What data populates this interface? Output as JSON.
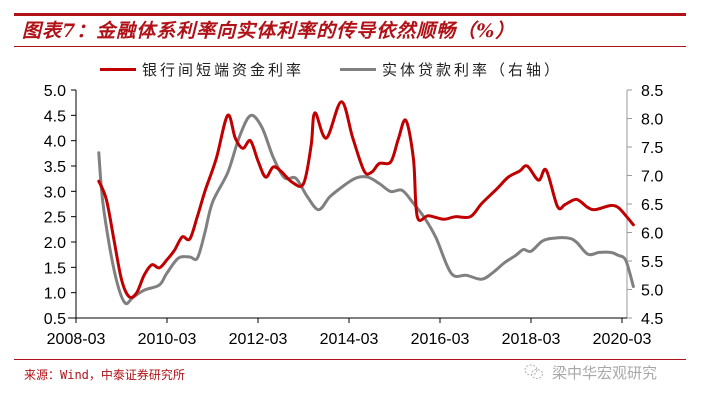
{
  "header": {
    "title": "图表7：金融体系利率向实体利率的传导依然顺畅（%）"
  },
  "legend": {
    "items": [
      {
        "label": "银行间短端资金利率",
        "color": "#c00000"
      },
      {
        "label": "实体贷款利率（右轴）",
        "color": "#808080"
      }
    ]
  },
  "footer": {
    "source": "来源：Wind，中泰证券研究所",
    "watermark": "梁中华宏观研究"
  },
  "chart_data": {
    "type": "line",
    "title": "图表7：金融体系利率向实体利率的传导依然顺畅（%）",
    "xlabel": "",
    "ylabel": "",
    "y2label": "右轴",
    "x_ticks": [
      "2008-03",
      "2010-03",
      "2012-03",
      "2014-03",
      "2016-03",
      "2018-03",
      "2020-03"
    ],
    "left_axis": {
      "range": [
        0.5,
        5.0
      ],
      "ticks": [
        "5.0",
        "4.5",
        "4.0",
        "3.5",
        "3.0",
        "2.5",
        "2.0",
        "1.5",
        "1.0",
        "0.5"
      ]
    },
    "right_axis": {
      "range": [
        4.5,
        8.5
      ],
      "ticks": [
        "8.5",
        "8.0",
        "7.5",
        "7.0",
        "6.5",
        "6.0",
        "5.5",
        "5.0",
        "4.5"
      ]
    },
    "grid": false,
    "legend_position": "top",
    "series": [
      {
        "name": "银行间短端资金利率",
        "axis": "left",
        "color": "#c00000",
        "points": [
          [
            "2008-09",
            3.2
          ],
          [
            "2008-11",
            2.84
          ],
          [
            "2009-01",
            2.05
          ],
          [
            "2009-03",
            1.26
          ],
          [
            "2009-05",
            0.92
          ],
          [
            "2009-07",
            1.0
          ],
          [
            "2009-09",
            1.35
          ],
          [
            "2009-11",
            1.55
          ],
          [
            "2010-01",
            1.49
          ],
          [
            "2010-03",
            1.65
          ],
          [
            "2010-05",
            1.84
          ],
          [
            "2010-07",
            2.1
          ],
          [
            "2010-09",
            2.06
          ],
          [
            "2010-11",
            2.5
          ],
          [
            "2011-01",
            3.0
          ],
          [
            "2011-04",
            3.65
          ],
          [
            "2011-07",
            4.5
          ],
          [
            "2011-09",
            4.05
          ],
          [
            "2011-11",
            3.85
          ],
          [
            "2012-01",
            4.0
          ],
          [
            "2012-03",
            3.6
          ],
          [
            "2012-05",
            3.28
          ],
          [
            "2012-07",
            3.48
          ],
          [
            "2012-09",
            3.4
          ],
          [
            "2012-12",
            3.18
          ],
          [
            "2013-03",
            3.15
          ],
          [
            "2013-05",
            3.9
          ],
          [
            "2013-06",
            4.55
          ],
          [
            "2013-09",
            4.05
          ],
          [
            "2014-01",
            4.77
          ],
          [
            "2014-04",
            4.05
          ],
          [
            "2014-07",
            3.4
          ],
          [
            "2014-09",
            3.38
          ],
          [
            "2014-11",
            3.55
          ],
          [
            "2015-02",
            3.58
          ],
          [
            "2015-04",
            4.03
          ],
          [
            "2015-06",
            4.4
          ],
          [
            "2015-08",
            3.63
          ],
          [
            "2015-09",
            2.5
          ],
          [
            "2015-12",
            2.52
          ],
          [
            "2016-04",
            2.45
          ],
          [
            "2016-07",
            2.5
          ],
          [
            "2016-11",
            2.5
          ],
          [
            "2017-02",
            2.76
          ],
          [
            "2017-06",
            3.05
          ],
          [
            "2017-09",
            3.28
          ],
          [
            "2017-12",
            3.4
          ],
          [
            "2018-02",
            3.5
          ],
          [
            "2018-05",
            3.22
          ],
          [
            "2018-07",
            3.42
          ],
          [
            "2018-10",
            2.7
          ],
          [
            "2018-12",
            2.74
          ],
          [
            "2019-03",
            2.84
          ],
          [
            "2019-06",
            2.68
          ],
          [
            "2019-08",
            2.64
          ],
          [
            "2019-12",
            2.72
          ],
          [
            "2020-02",
            2.68
          ],
          [
            "2020-04",
            2.52
          ],
          [
            "2020-06",
            2.34
          ]
        ]
      },
      {
        "name": "实体贷款利率（右轴）",
        "axis": "right",
        "color": "#808080",
        "points": [
          [
            "2008-09",
            7.4
          ],
          [
            "2008-10",
            6.58
          ],
          [
            "2008-12",
            5.7
          ],
          [
            "2009-02",
            5.08
          ],
          [
            "2009-04",
            4.76
          ],
          [
            "2009-06",
            4.86
          ],
          [
            "2009-09",
            4.99
          ],
          [
            "2010-01",
            5.08
          ],
          [
            "2010-03",
            5.29
          ],
          [
            "2010-06",
            5.55
          ],
          [
            "2010-09",
            5.57
          ],
          [
            "2010-11",
            5.55
          ],
          [
            "2011-01",
            6.0
          ],
          [
            "2011-03",
            6.53
          ],
          [
            "2011-07",
            7.05
          ],
          [
            "2011-10",
            7.66
          ],
          [
            "2012-01",
            8.05
          ],
          [
            "2012-04",
            7.85
          ],
          [
            "2012-07",
            7.32
          ],
          [
            "2012-10",
            6.96
          ],
          [
            "2013-01",
            6.95
          ],
          [
            "2013-04",
            6.63
          ],
          [
            "2013-07",
            6.4
          ],
          [
            "2013-10",
            6.63
          ],
          [
            "2014-02",
            6.84
          ],
          [
            "2014-05",
            6.96
          ],
          [
            "2014-08",
            6.97
          ],
          [
            "2014-11",
            6.86
          ],
          [
            "2015-02",
            6.72
          ],
          [
            "2015-05",
            6.74
          ],
          [
            "2015-08",
            6.51
          ],
          [
            "2015-11",
            6.25
          ],
          [
            "2016-02",
            5.9
          ],
          [
            "2016-06",
            5.28
          ],
          [
            "2016-10",
            5.25
          ],
          [
            "2017-02",
            5.18
          ],
          [
            "2017-05",
            5.3
          ],
          [
            "2017-08",
            5.47
          ],
          [
            "2017-11",
            5.6
          ],
          [
            "2018-01",
            5.7
          ],
          [
            "2018-03",
            5.67
          ],
          [
            "2018-06",
            5.85
          ],
          [
            "2018-09",
            5.9
          ],
          [
            "2019-01",
            5.9
          ],
          [
            "2019-03",
            5.83
          ],
          [
            "2019-06",
            5.62
          ],
          [
            "2019-09",
            5.65
          ],
          [
            "2019-12",
            5.65
          ],
          [
            "2020-02",
            5.6
          ],
          [
            "2020-04",
            5.51
          ],
          [
            "2020-06",
            5.05
          ]
        ]
      }
    ]
  }
}
